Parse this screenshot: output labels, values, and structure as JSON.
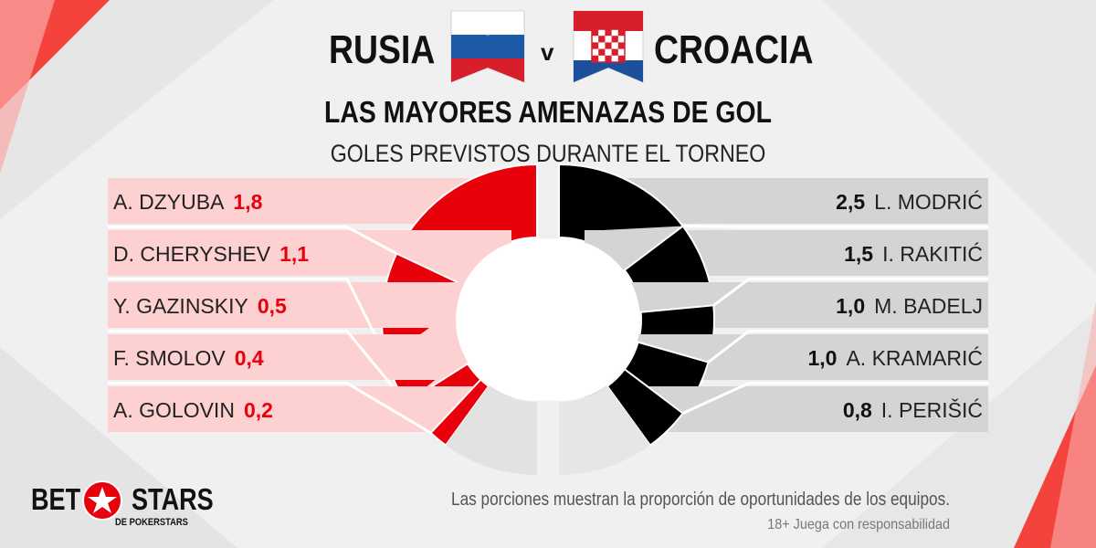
{
  "header": {
    "team_left": "RUSIA",
    "vs": "v",
    "team_right": "CROACIA",
    "headline": "LAS MAYORES AMENAZAS DE GOL",
    "subhead": "GOLES PREVISTOS DURANTE EL TORNEO"
  },
  "colors": {
    "red": "#e8000b",
    "red_panel": "#fdd0d1",
    "black": "#000000",
    "grey_panel": "#d4d4d4",
    "remainder_light": "#e6e6e6"
  },
  "chart_data": {
    "type": "pie",
    "title": "GOLES PREVISTOS DURANTE EL TORNEO",
    "series": [
      {
        "name": "RUSIA",
        "side": "left",
        "players": [
          {
            "name": "A. DZYUBA",
            "label": "1,8",
            "value": 1.8
          },
          {
            "name": "D. CHERYSHEV",
            "label": "1,1",
            "value": 1.1
          },
          {
            "name": "Y. GAZINSKIY",
            "label": "0,5",
            "value": 0.5
          },
          {
            "name": "F. SMOLOV",
            "label": "0,4",
            "value": 0.4
          },
          {
            "name": "A. GOLOVIN",
            "label": "0,2",
            "value": 0.2
          }
        ],
        "chance_share": 0.5
      },
      {
        "name": "CROACIA",
        "side": "right",
        "players": [
          {
            "name": "L. MODRIĆ",
            "label": "2,5",
            "value": 2.5
          },
          {
            "name": "I. RAKITIĆ",
            "label": "1,5",
            "value": 1.5
          },
          {
            "name": "M. BADELJ",
            "label": "1,0",
            "value": 1.0
          },
          {
            "name": "A. KRAMARIĆ",
            "label": "1,0",
            "value": 1.0
          },
          {
            "name": "I. PERIŠIĆ",
            "label": "0,8",
            "value": 0.8
          }
        ],
        "chance_share": 0.5
      }
    ]
  },
  "footer": {
    "note": "Las porciones muestran la proporción de oportunidades de los equipos.",
    "disclaimer": "18+ Juega con responsabilidad",
    "logo_bet": "BET",
    "logo_stars": "STARS",
    "logo_sub": "DE POKERSTARS"
  }
}
